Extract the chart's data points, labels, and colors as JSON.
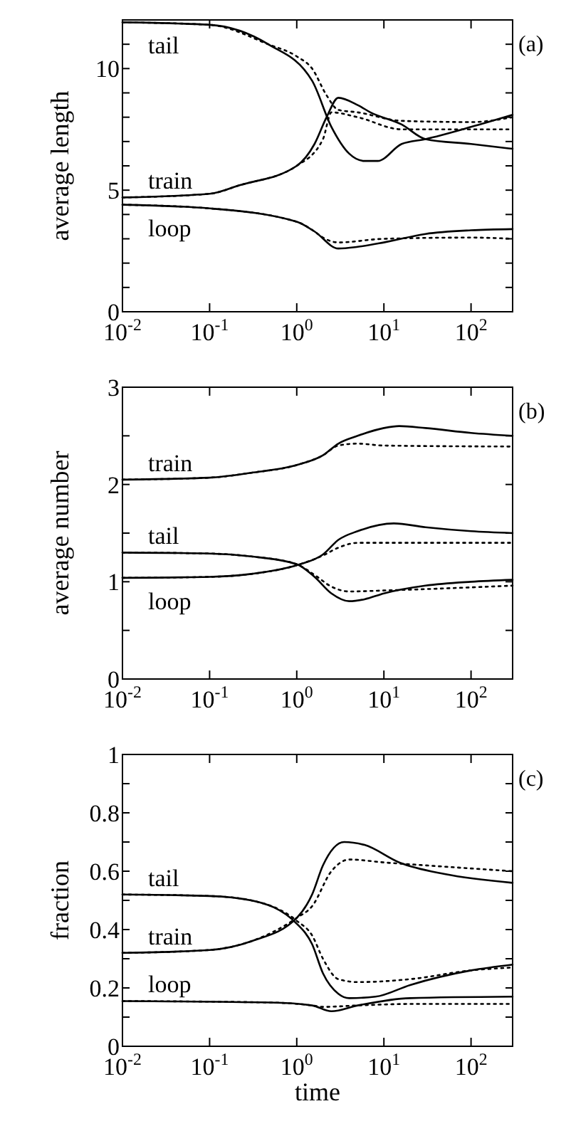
{
  "chart_data": [
    {
      "type": "line",
      "ylabel": "average length",
      "annotations": [
        "(a)"
      ],
      "log": "x",
      "xlim": [
        0.01,
        300
      ],
      "xticks": [
        {
          "value": 0.01,
          "label": "10$^{-2}$"
        },
        {
          "value": 0.1,
          "label": "10$^{-1}$"
        },
        {
          "value": 1,
          "label": "10$^{0}$"
        },
        {
          "value": 10,
          "label": "10$^{1}$"
        },
        {
          "value": 100,
          "label": "10$^{2}$"
        }
      ],
      "ylim": [
        0,
        12
      ],
      "yticks": [
        0,
        {
          "value": 1,
          "label": null
        },
        {
          "value": 2,
          "label": null
        },
        {
          "value": 3,
          "label": null
        },
        {
          "value": 4,
          "label": null
        },
        5,
        {
          "value": 6,
          "label": null
        },
        {
          "value": 7,
          "label": null
        },
        {
          "value": 8,
          "label": null
        },
        {
          "value": 9,
          "label": null
        },
        10,
        {
          "value": 11,
          "label": null
        }
      ],
      "grid": false,
      "series": [
        {
          "name": "tail",
          "color": "#000000",
          "line_style": "solid",
          "x": [
            0.01,
            0.1,
            0.47,
            1.5,
            2.5,
            4,
            6,
            8.5,
            16,
            30,
            100,
            300
          ],
          "values": [
            11.9,
            11.8,
            11.0,
            9.5,
            7.6,
            6.5,
            6.2,
            6.2,
            6.9,
            7.1,
            7.6,
            8.1
          ]
        },
        {
          "name": "train",
          "color": "#000000",
          "line_style": "solid",
          "x": [
            0.01,
            0.1,
            0.22,
            1,
            1.6,
            2.2,
            3,
            5,
            7,
            16,
            30,
            100,
            300
          ],
          "values": [
            4.7,
            4.85,
            5.2,
            6.0,
            6.9,
            8.0,
            8.8,
            8.5,
            8.2,
            7.7,
            7.1,
            6.9,
            6.7
          ]
        },
        {
          "name": "loop",
          "color": "#000000",
          "line_style": "solid",
          "x": [
            0.01,
            0.1,
            1,
            1.6,
            3,
            5,
            10,
            30,
            100,
            300
          ],
          "values": [
            4.4,
            4.25,
            3.7,
            3.3,
            2.6,
            2.67,
            2.85,
            3.2,
            3.35,
            3.4
          ]
        },
        {
          "color": "#000000",
          "line_style": "dotted",
          "x": [
            0.01,
            0.1,
            0.47,
            1,
            1.5,
            2.2,
            3,
            5,
            16,
            100,
            300
          ],
          "values": [
            11.9,
            11.8,
            11.0,
            10.5,
            10.0,
            8.9,
            8.3,
            8.2,
            7.85,
            7.8,
            8.0
          ]
        },
        {
          "color": "#000000",
          "line_style": "dotted",
          "x": [
            0.01,
            0.1,
            0.22,
            1,
            2,
            2.5,
            5,
            16,
            100,
            300
          ],
          "values": [
            4.7,
            4.85,
            5.2,
            6.0,
            7.1,
            8.2,
            8.0,
            7.5,
            7.5,
            7.5
          ]
        },
        {
          "color": "#000000",
          "line_style": "dotted",
          "x": [
            0.01,
            0.1,
            1,
            1.6,
            2,
            3,
            10,
            100,
            300
          ],
          "values": [
            4.4,
            4.25,
            3.7,
            3.3,
            3.05,
            2.85,
            3.0,
            3.05,
            3.0
          ]
        }
      ]
    },
    {
      "type": "line",
      "ylabel": "average number",
      "annotations": [
        "(b)"
      ],
      "log": "x",
      "xlim": [
        0.01,
        300
      ],
      "xticks": [
        {
          "value": 0.01,
          "label": "10$^{-2}$"
        },
        {
          "value": 0.1,
          "label": "10$^{-1}$"
        },
        {
          "value": 1,
          "label": "10$^{0}$"
        },
        {
          "value": 10,
          "label": "10$^{1}$"
        },
        {
          "value": 100,
          "label": "10$^{2}$"
        }
      ],
      "ylim": [
        0,
        3
      ],
      "yticks": [
        0,
        {
          "value": 0.5,
          "label": null
        },
        1,
        {
          "value": 1.5,
          "label": null
        },
        2,
        {
          "value": 2.5,
          "label": null
        },
        3
      ],
      "grid": false,
      "series": [
        {
          "name": "train",
          "color": "#000000",
          "line_style": "solid",
          "x": [
            0.01,
            0.1,
            0.3,
            1,
            2,
            3,
            5,
            10,
            15,
            30,
            100,
            300
          ],
          "values": [
            2.05,
            2.07,
            2.12,
            2.2,
            2.3,
            2.42,
            2.5,
            2.58,
            2.6,
            2.58,
            2.53,
            2.5
          ]
        },
        {
          "name": "tail",
          "color": "#000000",
          "line_style": "solid",
          "x": [
            0.01,
            0.1,
            0.3,
            1,
            1.6,
            2.5,
            4,
            6,
            10,
            30,
            100,
            300
          ],
          "values": [
            1.3,
            1.29,
            1.26,
            1.18,
            1.05,
            0.88,
            0.8,
            0.82,
            0.88,
            0.96,
            1.0,
            1.02
          ]
        },
        {
          "name": "loop",
          "color": "#000000",
          "line_style": "solid",
          "x": [
            0.01,
            0.1,
            0.3,
            1,
            2,
            3,
            5,
            13,
            30,
            100,
            300
          ],
          "values": [
            1.04,
            1.05,
            1.08,
            1.17,
            1.28,
            1.43,
            1.52,
            1.6,
            1.56,
            1.52,
            1.5
          ]
        },
        {
          "color": "#000000",
          "line_style": "dotted",
          "x": [
            0.01,
            0.1,
            0.3,
            1,
            2,
            3,
            5,
            10,
            300
          ],
          "values": [
            2.05,
            2.07,
            2.12,
            2.2,
            2.3,
            2.4,
            2.42,
            2.4,
            2.39
          ]
        },
        {
          "color": "#000000",
          "line_style": "dotted",
          "x": [
            0.01,
            0.1,
            0.3,
            1,
            1.6,
            2.5,
            4,
            10,
            300
          ],
          "values": [
            1.3,
            1.29,
            1.26,
            1.18,
            1.07,
            0.95,
            0.9,
            0.91,
            0.96
          ]
        },
        {
          "color": "#000000",
          "line_style": "dotted",
          "x": [
            0.01,
            0.1,
            0.3,
            1,
            2,
            3,
            5,
            10,
            300
          ],
          "values": [
            1.04,
            1.05,
            1.08,
            1.17,
            1.27,
            1.35,
            1.4,
            1.4,
            1.4
          ]
        }
      ]
    },
    {
      "type": "line",
      "xlabel": "time",
      "ylabel": "fraction",
      "annotations": [
        "(c)"
      ],
      "log": "x",
      "xlim": [
        0.01,
        300
      ],
      "xticks": [
        {
          "value": 0.01,
          "label": "10$^{-2}$"
        },
        {
          "value": 0.1,
          "label": "10$^{-1}$"
        },
        {
          "value": 1,
          "label": "10$^{0}$"
        },
        {
          "value": 10,
          "label": "10$^{1}$"
        },
        {
          "value": 100,
          "label": "10$^{2}$"
        }
      ],
      "ylim": [
        0,
        1
      ],
      "yticks": [
        0,
        {
          "value": 0.1,
          "label": null
        },
        0.2,
        {
          "value": 0.3,
          "label": null
        },
        0.4,
        {
          "value": 0.5,
          "label": null
        },
        0.6,
        {
          "value": 0.7,
          "label": null
        },
        0.8,
        {
          "value": 0.9,
          "label": null
        },
        1
      ],
      "grid": false,
      "series": [
        {
          "name": "tail",
          "color": "#000000",
          "line_style": "solid",
          "x": [
            0.01,
            0.1,
            0.3,
            1,
            1.5,
            2,
            3,
            4,
            8,
            20,
            100,
            300
          ],
          "values": [
            0.52,
            0.515,
            0.5,
            0.42,
            0.35,
            0.25,
            0.18,
            0.165,
            0.17,
            0.21,
            0.26,
            0.28
          ]
        },
        {
          "name": "train",
          "color": "#000000",
          "line_style": "solid",
          "x": [
            0.01,
            0.1,
            0.3,
            1,
            1.5,
            2,
            3.5,
            6,
            15,
            50,
            300
          ],
          "values": [
            0.32,
            0.33,
            0.36,
            0.44,
            0.52,
            0.62,
            0.7,
            0.69,
            0.63,
            0.59,
            0.56
          ]
        },
        {
          "name": "loop",
          "color": "#000000",
          "line_style": "solid",
          "x": [
            0.01,
            0.5,
            1.5,
            2.5,
            5,
            20,
            300
          ],
          "values": [
            0.155,
            0.15,
            0.14,
            0.12,
            0.14,
            0.165,
            0.17
          ]
        },
        {
          "color": "#000000",
          "line_style": "dotted",
          "x": [
            0.01,
            0.1,
            0.3,
            1,
            1.5,
            2,
            3,
            5,
            20,
            100,
            300
          ],
          "values": [
            0.52,
            0.515,
            0.5,
            0.43,
            0.38,
            0.3,
            0.23,
            0.22,
            0.23,
            0.26,
            0.27
          ]
        },
        {
          "color": "#000000",
          "line_style": "dotted",
          "x": [
            0.01,
            0.1,
            0.3,
            1,
            1.5,
            2.5,
            4,
            10,
            30,
            300
          ],
          "values": [
            0.32,
            0.33,
            0.36,
            0.44,
            0.48,
            0.6,
            0.64,
            0.63,
            0.62,
            0.6
          ]
        },
        {
          "color": "#000000",
          "line_style": "dotted",
          "x": [
            0.01,
            0.5,
            1.5,
            2,
            5,
            20,
            300
          ],
          "values": [
            0.155,
            0.15,
            0.14,
            0.135,
            0.14,
            0.145,
            0.145
          ]
        }
      ]
    }
  ]
}
